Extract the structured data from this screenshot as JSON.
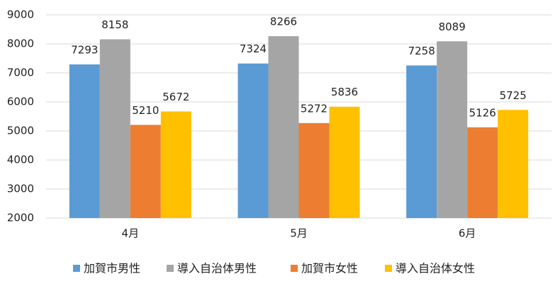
{
  "chart_data": {
    "type": "bar",
    "categories": [
      "4月",
      "5月",
      "6月"
    ],
    "series": [
      {
        "name": "加賀市男性",
        "color": "#5b9bd5",
        "values": [
          7293,
          7324,
          7258
        ]
      },
      {
        "name": "導入自治体男性",
        "color": "#a5a5a5",
        "values": [
          8158,
          8266,
          8089
        ]
      },
      {
        "name": "加賀市女性",
        "color": "#ed7d31",
        "values": [
          5210,
          5272,
          5126
        ]
      },
      {
        "name": "導入自治体女性",
        "color": "#ffc000",
        "values": [
          5672,
          5836,
          5725
        ]
      }
    ],
    "ylim": [
      2000,
      9000
    ],
    "yticks": [
      2000,
      3000,
      4000,
      5000,
      6000,
      7000,
      8000,
      9000
    ],
    "grid": true,
    "legend": "bottom"
  }
}
